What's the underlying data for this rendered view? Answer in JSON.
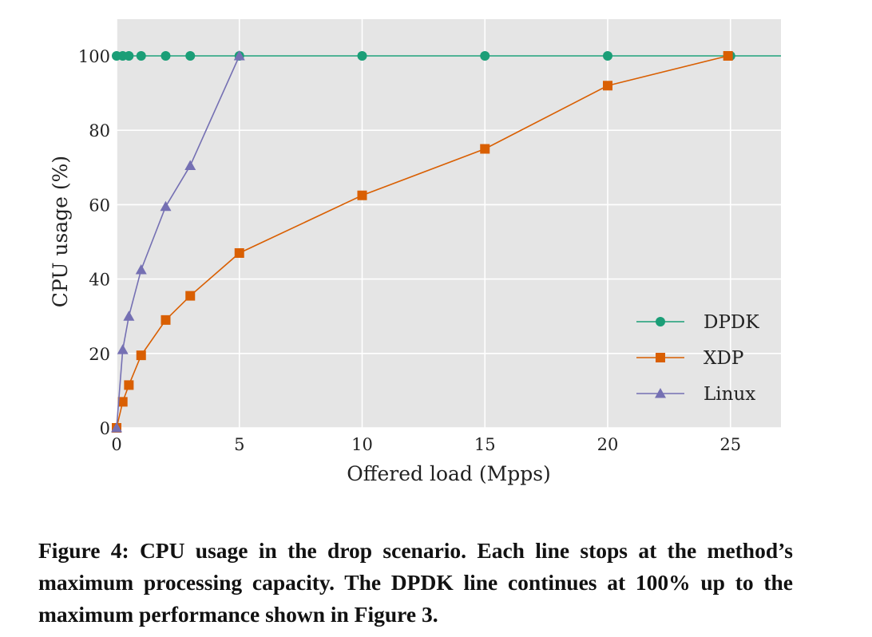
{
  "chart_data": {
    "type": "line",
    "title": "",
    "xlabel": "Offered load (Mpps)",
    "ylabel": "CPU usage (%)",
    "xlim": [
      0,
      27
    ],
    "ylim": [
      0,
      110
    ],
    "xticks": [
      0,
      5,
      10,
      15,
      20,
      25
    ],
    "yticks": [
      0,
      20,
      40,
      60,
      80,
      100
    ],
    "grid": true,
    "background": "#e5e5e5",
    "legend_position": "bottom-right",
    "series": [
      {
        "name": "DPDK",
        "color": "#1b9e77",
        "marker": "circle",
        "x": [
          0,
          0.25,
          0.5,
          1,
          2,
          3,
          5,
          10,
          15,
          20,
          25
        ],
        "y": [
          100,
          100,
          100,
          100,
          100,
          100,
          100,
          100,
          100,
          100,
          100
        ],
        "extends_to_axis_edge": true
      },
      {
        "name": "XDP",
        "color": "#d95f02",
        "marker": "square",
        "x": [
          0,
          0.25,
          0.5,
          1,
          2,
          3,
          5,
          10,
          15,
          20,
          24.9
        ],
        "y": [
          0,
          7,
          11.5,
          19.5,
          29,
          35.5,
          47,
          62.5,
          75,
          92,
          100
        ]
      },
      {
        "name": "Linux",
        "color": "#7570b3",
        "marker": "triangle",
        "x": [
          0,
          0.25,
          0.5,
          1,
          2,
          3,
          5
        ],
        "y": [
          0,
          21,
          30,
          42.5,
          59.5,
          70.5,
          100
        ]
      }
    ]
  },
  "caption": "Figure 4:  CPU usage in the drop scenario. Each line stops at the method’s maximum processing capacity. The DPDK line continues at 100% up to the maximum performance shown in Figure 3."
}
